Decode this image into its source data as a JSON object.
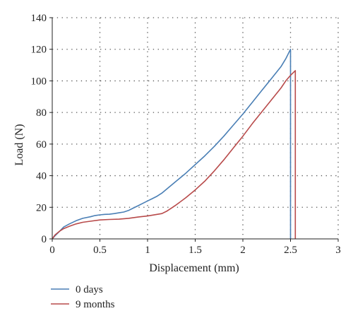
{
  "chart_data": {
    "type": "line",
    "xlabel": "Displacement (mm)",
    "ylabel": "Load (N)",
    "xlim": [
      0,
      3
    ],
    "ylim": [
      0,
      140
    ],
    "x_ticks": [
      0,
      0.5,
      1,
      1.5,
      2,
      2.5,
      3
    ],
    "x_tick_labels": [
      "0",
      "0.5",
      "1",
      "1.5",
      "2",
      "2.5",
      "3"
    ],
    "y_ticks": [
      0,
      20,
      40,
      60,
      80,
      100,
      120,
      140
    ],
    "y_tick_labels": [
      "0",
      "20",
      "40",
      "60",
      "80",
      "100",
      "120",
      "140"
    ],
    "grid": "dotted",
    "legend": "bottom-left",
    "series": [
      {
        "name": "0 days",
        "color": "#4a7fb5",
        "x": [
          0,
          0.03,
          0.08,
          0.12,
          0.18,
          0.25,
          0.32,
          0.4,
          0.45,
          0.5,
          0.55,
          0.6,
          0.65,
          0.7,
          0.75,
          0.8,
          0.85,
          0.9,
          0.95,
          1.0,
          1.05,
          1.1,
          1.15,
          1.2,
          1.3,
          1.4,
          1.5,
          1.6,
          1.7,
          1.8,
          1.9,
          2.0,
          2.1,
          2.2,
          2.3,
          2.4,
          2.45,
          2.5,
          2.5
        ],
        "y": [
          0,
          2,
          5,
          7.5,
          9.5,
          11.5,
          13,
          14,
          14.8,
          15.2,
          15.5,
          15.6,
          16,
          16.5,
          17,
          18,
          19.5,
          21,
          22.5,
          24,
          25.5,
          27,
          29,
          31.5,
          36.5,
          41.5,
          47,
          52.5,
          58.5,
          65,
          72,
          79,
          86.5,
          94,
          101.5,
          109,
          114,
          120,
          0
        ]
      },
      {
        "name": "9 months",
        "color": "#b84a4a",
        "x": [
          0,
          0.03,
          0.08,
          0.12,
          0.18,
          0.25,
          0.32,
          0.4,
          0.5,
          0.6,
          0.7,
          0.8,
          0.9,
          1.0,
          1.1,
          1.15,
          1.2,
          1.25,
          1.3,
          1.4,
          1.5,
          1.6,
          1.7,
          1.8,
          1.9,
          2.0,
          2.1,
          2.2,
          2.3,
          2.4,
          2.45,
          2.5,
          2.55,
          2.55
        ],
        "y": [
          0,
          2.5,
          5,
          6.5,
          8,
          9.5,
          10.5,
          11.2,
          12,
          12.3,
          12.5,
          13,
          13.8,
          14.5,
          15.5,
          16,
          17.5,
          19.5,
          21.5,
          26,
          31,
          36.5,
          43,
          50,
          57.5,
          65,
          73,
          80.5,
          88,
          95.5,
          100,
          103.5,
          106.5,
          0
        ]
      }
    ]
  }
}
